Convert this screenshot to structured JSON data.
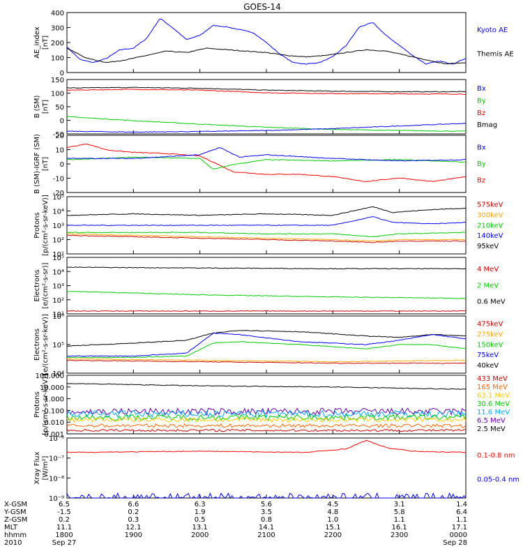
{
  "title": "GOES-14",
  "panels": [
    {
      "id": "ae",
      "ylabel": "AE_index",
      "unit": "[nT]",
      "ticks": [
        "400",
        "300",
        "200",
        "100",
        "0"
      ],
      "legend": [
        {
          "label": "Kyoto AE",
          "color": "#0000ff"
        },
        {
          "label": "Themis AE",
          "color": "#000000"
        }
      ]
    },
    {
      "id": "bsm",
      "ylabel": "B (SM)",
      "unit": "[nT]",
      "ticks": [
        "150",
        "100",
        "50",
        "0",
        "-50"
      ],
      "legend": [
        {
          "label": "Bx",
          "color": "#0000ff"
        },
        {
          "label": "By",
          "color": "#00cc00"
        },
        {
          "label": "Bz",
          "color": "#ff0000"
        },
        {
          "label": "Bmag",
          "color": "#000000"
        }
      ]
    },
    {
      "id": "bigrf",
      "ylabel": "B (SM)-IGRF (SM)",
      "unit": "[nT]",
      "ticks": [
        "20",
        "10",
        "0",
        "-10",
        "-20"
      ],
      "legend": [
        {
          "label": "Bx",
          "color": "#0000ff"
        },
        {
          "label": "By",
          "color": "#00cc00"
        },
        {
          "label": "Bz",
          "color": "#ff0000"
        }
      ]
    },
    {
      "id": "protons1",
      "ylabel": "Protons",
      "unit": "[p/(cm²-s-sr-keV)]",
      "ticks": [
        "10⁵",
        "10⁴",
        "10³",
        "10²",
        "10¹"
      ],
      "legend": [
        {
          "label": "575keV",
          "color": "#cc0000"
        },
        {
          "label": "300keV",
          "color": "#ffaa00"
        },
        {
          "label": "210keV",
          "color": "#00cc00"
        },
        {
          "label": "140keV",
          "color": "#0000ff"
        },
        {
          "label": "95keV",
          "color": "#000000"
        }
      ]
    },
    {
      "id": "electrons1",
      "ylabel": "Electrons",
      "unit": "[e/(cm²-s-sr)]",
      "ticks": [
        "10⁵",
        "10⁴",
        "10³",
        "10²",
        "10¹"
      ],
      "legend": [
        {
          "label": "4 MeV",
          "color": "#cc0000"
        },
        {
          "label": "2 MeV",
          "color": "#00cc00"
        },
        {
          "label": "0.6 MeV",
          "color": "#000000"
        }
      ]
    },
    {
      "id": "electrons2",
      "ylabel": "Electrons",
      "unit": "[e/(cm²-s-sr-keV)]",
      "ticks": [
        "10⁶",
        "10⁵",
        "10⁴"
      ],
      "legend": [
        {
          "label": "475keV",
          "color": "#cc0000"
        },
        {
          "label": "275keV",
          "color": "#ffaa00"
        },
        {
          "label": "150keV",
          "color": "#00cc00"
        },
        {
          "label": "75keV",
          "color": "#0000ff"
        },
        {
          "label": "40keV",
          "color": "#000000"
        }
      ]
    },
    {
      "id": "protons2",
      "ylabel": "Protons",
      "unit": "[p/(cm²-s-sr-keV)]",
      "ticks": [
        "100.000",
        "10.000",
        "1.000",
        "0.100",
        "0.010",
        "0.001"
      ],
      "legend": [
        {
          "label": "433 MeV",
          "color": "#cc0000"
        },
        {
          "label": "165 MeV",
          "color": "#ff6600"
        },
        {
          "label": "63.1 MeV",
          "color": "#ffcc00"
        },
        {
          "label": "30.6 MeV",
          "color": "#00cc00"
        },
        {
          "label": "11.6 MeV",
          "color": "#00aaff"
        },
        {
          "label": "6.5 MeV",
          "color": "#6600aa"
        },
        {
          "label": "2.5 MeV",
          "color": "#000000"
        }
      ]
    },
    {
      "id": "xray",
      "ylabel": "Xray Flux",
      "unit": "[W/m²]",
      "ticks": [
        "10⁻⁶",
        "10⁻⁷",
        "10⁻⁸",
        "10⁻⁹"
      ],
      "legend": [
        {
          "label": "0.1-0.8 nm",
          "color": "#ff0000"
        },
        {
          "label": "0.05-0.4 nm",
          "color": "#0000ff"
        }
      ]
    }
  ],
  "footer": {
    "row_labels": [
      "X-GSM",
      "Y-GSM",
      "Z-GSM",
      "MLT",
      "hhmm",
      "2010"
    ],
    "columns": [
      {
        "values": [
          "6.5",
          "-1.5",
          "0.2",
          "11.1",
          "1800",
          "Sep 27"
        ]
      },
      {
        "values": [
          "6.6",
          "0.2",
          "0.3",
          "12.1",
          "1900",
          ""
        ]
      },
      {
        "values": [
          "6.3",
          "1.9",
          "0.5",
          "13.1",
          "2000",
          ""
        ]
      },
      {
        "values": [
          "5.6",
          "3.5",
          "0.8",
          "14.1",
          "2100",
          ""
        ]
      },
      {
        "values": [
          "4.5",
          "4.8",
          "1.0",
          "15.1",
          "2200",
          ""
        ]
      },
      {
        "values": [
          "3.1",
          "5.8",
          "1.1",
          "16.1",
          "2300",
          ""
        ]
      },
      {
        "values": [
          "1.4",
          "6.4",
          "1.1",
          "17.1",
          "0000",
          "Sep 28"
        ]
      }
    ]
  },
  "chart_data": {
    "type": "line",
    "title": "GOES-14",
    "x_ticks": [
      "1800",
      "1900",
      "2000",
      "2100",
      "2200",
      "2300",
      "0000"
    ],
    "x_range": [
      "2010-09-27 18:00",
      "2010-09-28 00:00"
    ],
    "panels": [
      {
        "ylim": [
          0,
          420
        ],
        "scale": "linear",
        "series": [
          {
            "name": "Kyoto AE",
            "color": "#0000ff",
            "t": [
              0,
              0.2,
              0.4,
              0.6,
              0.8,
              1.0,
              1.2,
              1.4,
              1.6,
              1.8,
              2.0,
              2.2,
              2.4,
              2.6,
              2.8,
              3.0,
              3.2,
              3.4,
              3.6,
              3.8,
              4.0,
              4.2,
              4.4,
              4.6,
              4.8,
              5.0,
              5.2,
              5.4,
              5.6,
              5.8,
              6.0
            ],
            "v": [
              180,
              90,
              70,
              100,
              160,
              170,
              240,
              380,
              310,
              230,
              260,
              330,
              320,
              300,
              280,
              210,
              130,
              70,
              60,
              70,
              110,
              190,
              320,
              350,
              260,
              190,
              120,
              60,
              80,
              60,
              100
            ]
          },
          {
            "name": "Themis AE",
            "color": "#000000",
            "t": [
              0,
              0.3,
              0.6,
              0.9,
              1.2,
              1.5,
              1.8,
              2.1,
              2.4,
              2.7,
              3.0,
              3.3,
              3.6,
              3.9,
              4.2,
              4.5,
              4.8,
              5.1,
              5.4,
              5.7,
              6.0
            ],
            "v": [
              170,
              100,
              70,
              90,
              120,
              150,
              140,
              170,
              160,
              150,
              140,
              120,
              110,
              120,
              140,
              160,
              150,
              120,
              90,
              60,
              70
            ]
          }
        ]
      },
      {
        "ylim": [
          -55,
          150
        ],
        "scale": "linear",
        "series": [
          {
            "name": "Bmag",
            "color": "#000000",
            "t": [
              0,
              1,
              2,
              3,
              4,
              5,
              6
            ],
            "v": [
              118,
              120,
              117,
              110,
              106,
              104,
              104
            ]
          },
          {
            "name": "Bz",
            "color": "#ff0000",
            "t": [
              0,
              1,
              2,
              3,
              4,
              5,
              6
            ],
            "v": [
              110,
              113,
              110,
              100,
              97,
              96,
              95
            ]
          },
          {
            "name": "By",
            "color": "#00cc00",
            "t": [
              0,
              1,
              2,
              3,
              4,
              5,
              6
            ],
            "v": [
              10,
              -5,
              -18,
              -30,
              -38,
              -42,
              -45
            ]
          },
          {
            "name": "Bx",
            "color": "#0000ff",
            "t": [
              0,
              1,
              2,
              3,
              4,
              5,
              6
            ],
            "v": [
              -45,
              -48,
              -46,
              -42,
              -35,
              -25,
              -15
            ]
          }
        ]
      },
      {
        "ylim": [
          -25,
          22
        ],
        "scale": "linear",
        "series": [
          {
            "name": "Bz",
            "color": "#ff0000",
            "t": [
              0,
              0.3,
              0.6,
              1.0,
              1.5,
              2.0,
              2.2,
              2.5,
              3.0,
              3.5,
              4.0,
              4.5,
              5.0,
              5.5,
              6.0
            ],
            "v": [
              12,
              15,
              10,
              8,
              7,
              5,
              0,
              -8,
              -10,
              -10,
              -12,
              -16,
              -13,
              -16,
              -12
            ]
          },
          {
            "name": "By",
            "color": "#00cc00",
            "t": [
              0,
              1,
              2,
              2.2,
              2.5,
              3,
              4,
              5,
              6
            ],
            "v": [
              2,
              4,
              3,
              -6,
              -2,
              2,
              1,
              2,
              0
            ]
          },
          {
            "name": "Bx",
            "color": "#0000ff",
            "t": [
              0,
              1,
              2,
              2.3,
              2.6,
              3,
              4,
              5,
              6
            ],
            "v": [
              3,
              3,
              6,
              12,
              4,
              6,
              3,
              1,
              2
            ]
          }
        ]
      },
      {
        "ylim": [
          1,
          5
        ],
        "scale": "log10",
        "series": [
          {
            "name": "95keV",
            "color": "#000000",
            "t": [
              0,
              1,
              2,
              3,
              4,
              4.6,
              4.9,
              5.5,
              6
            ],
            "v": [
              3.7,
              3.8,
              3.7,
              3.8,
              3.7,
              4.3,
              3.9,
              4.1,
              4.2
            ]
          },
          {
            "name": "140keV",
            "color": "#0000ff",
            "t": [
              0,
              1,
              2,
              3,
              4,
              4.6,
              4.9,
              5.5,
              6
            ],
            "v": [
              3.0,
              3.0,
              3.0,
              3.0,
              3.0,
              3.6,
              3.2,
              3.1,
              3.2
            ]
          },
          {
            "name": "210keV",
            "color": "#00cc00",
            "t": [
              0,
              1,
              2,
              3,
              4,
              4.6,
              5,
              6
            ],
            "v": [
              2.5,
              2.5,
              2.5,
              2.4,
              2.4,
              2.2,
              2.4,
              2.5
            ]
          },
          {
            "name": "300keV",
            "color": "#ffaa00",
            "t": [
              0,
              1,
              2,
              3,
              4,
              4.6,
              5,
              6
            ],
            "v": [
              2.4,
              2.3,
              2.2,
              2.1,
              2.0,
              1.9,
              2.0,
              2.0
            ]
          },
          {
            "name": "575keV",
            "color": "#cc0000",
            "t": [
              0,
              1,
              2,
              3,
              4,
              4.6,
              5,
              6
            ],
            "v": [
              2.3,
              2.2,
              2.1,
              2.0,
              1.9,
              1.8,
              1.9,
              1.9
            ]
          }
        ]
      },
      {
        "ylim": [
          1,
          5
        ],
        "scale": "log10",
        "series": [
          {
            "name": "0.6 MeV",
            "color": "#000000",
            "t": [
              0,
              2,
              4,
              6
            ],
            "v": [
              4.3,
              4.25,
              4.2,
              4.2
            ]
          },
          {
            "name": "2 MeV",
            "color": "#00cc00",
            "t": [
              0,
              2,
              4,
              6
            ],
            "v": [
              2.6,
              2.35,
              2.2,
              2.1
            ]
          },
          {
            "name": "4 MeV",
            "color": "#cc0000",
            "t": [
              0,
              2,
              4,
              6
            ],
            "v": [
              1.2,
              1.2,
              1.2,
              1.2
            ]
          }
        ]
      },
      {
        "ylim": [
          4,
          6
        ],
        "scale": "log10",
        "series": [
          {
            "name": "40keV",
            "color": "#000000",
            "t": [
              0,
              1,
              1.8,
              2.2,
              2.6,
              3.5,
              4.5,
              5.0,
              5.5,
              6
            ],
            "v": [
              4.95,
              5.05,
              5.15,
              5.4,
              5.5,
              5.45,
              5.3,
              5.25,
              5.35,
              5.3
            ]
          },
          {
            "name": "75keV",
            "color": "#0000ff",
            "t": [
              0,
              1,
              1.8,
              2.2,
              2.6,
              3.5,
              4.5,
              5.0,
              5.5,
              6
            ],
            "v": [
              4.6,
              4.6,
              4.7,
              5.4,
              5.35,
              5.1,
              5.0,
              5.15,
              5.35,
              5.2
            ]
          },
          {
            "name": "150keV",
            "color": "#00cc00",
            "t": [
              0,
              1,
              1.8,
              2.2,
              2.6,
              3.5,
              4.5,
              5.0,
              5.5,
              6
            ],
            "v": [
              4.55,
              4.55,
              4.6,
              5.05,
              5.1,
              5.0,
              4.85,
              5.0,
              5.0,
              4.85
            ]
          },
          {
            "name": "275keV",
            "color": "#ffaa00",
            "t": [
              0,
              2,
              4,
              6
            ],
            "v": [
              4.5,
              4.45,
              4.4,
              4.45
            ]
          },
          {
            "name": "475keV",
            "color": "#cc0000",
            "t": [
              0,
              2,
              4,
              6
            ],
            "v": [
              4.45,
              4.4,
              4.35,
              4.35
            ]
          }
        ]
      },
      {
        "ylim": [
          -3,
          2
        ],
        "scale": "log10",
        "series": [
          {
            "name": "2.5 MeV",
            "color": "#000000",
            "t": [
              0,
              2,
              4,
              6
            ],
            "v": [
              1.3,
              1.1,
              1.0,
              0.8
            ]
          },
          {
            "name": "6.5 MeV",
            "color": "#6600aa",
            "level": -1.1,
            "noise": 0.3
          },
          {
            "name": "11.6 MeV",
            "color": "#00aaff",
            "level": -1.3,
            "noise": 0.3
          },
          {
            "name": "30.6 MeV",
            "color": "#00cc00",
            "level": -1.6,
            "noise": 0.25
          },
          {
            "name": "63.1 MeV",
            "color": "#ffcc00",
            "level": -1.8,
            "noise": 0.2
          },
          {
            "name": "165 MeV",
            "color": "#ff6600",
            "level": -2.3,
            "noise": 0.15
          },
          {
            "name": "433 MeV",
            "color": "#cc0000",
            "level": -2.7,
            "noise": 0.1
          }
        ]
      },
      {
        "ylim": [
          -9,
          -6.5
        ],
        "scale": "log10",
        "series": [
          {
            "name": "0.1-0.8 nm",
            "color": "#ff0000",
            "t": [
              0,
              2,
              3.6,
              4.2,
              4.5,
              4.8,
              5.2,
              6
            ],
            "v": [
              -7.1,
              -7.05,
              -7.1,
              -6.95,
              -6.6,
              -6.9,
              -7.05,
              -7.1
            ]
          },
          {
            "name": "0.05-0.4 nm",
            "color": "#0000ff",
            "level": -9.0,
            "noise": 0.2
          }
        ]
      }
    ]
  }
}
